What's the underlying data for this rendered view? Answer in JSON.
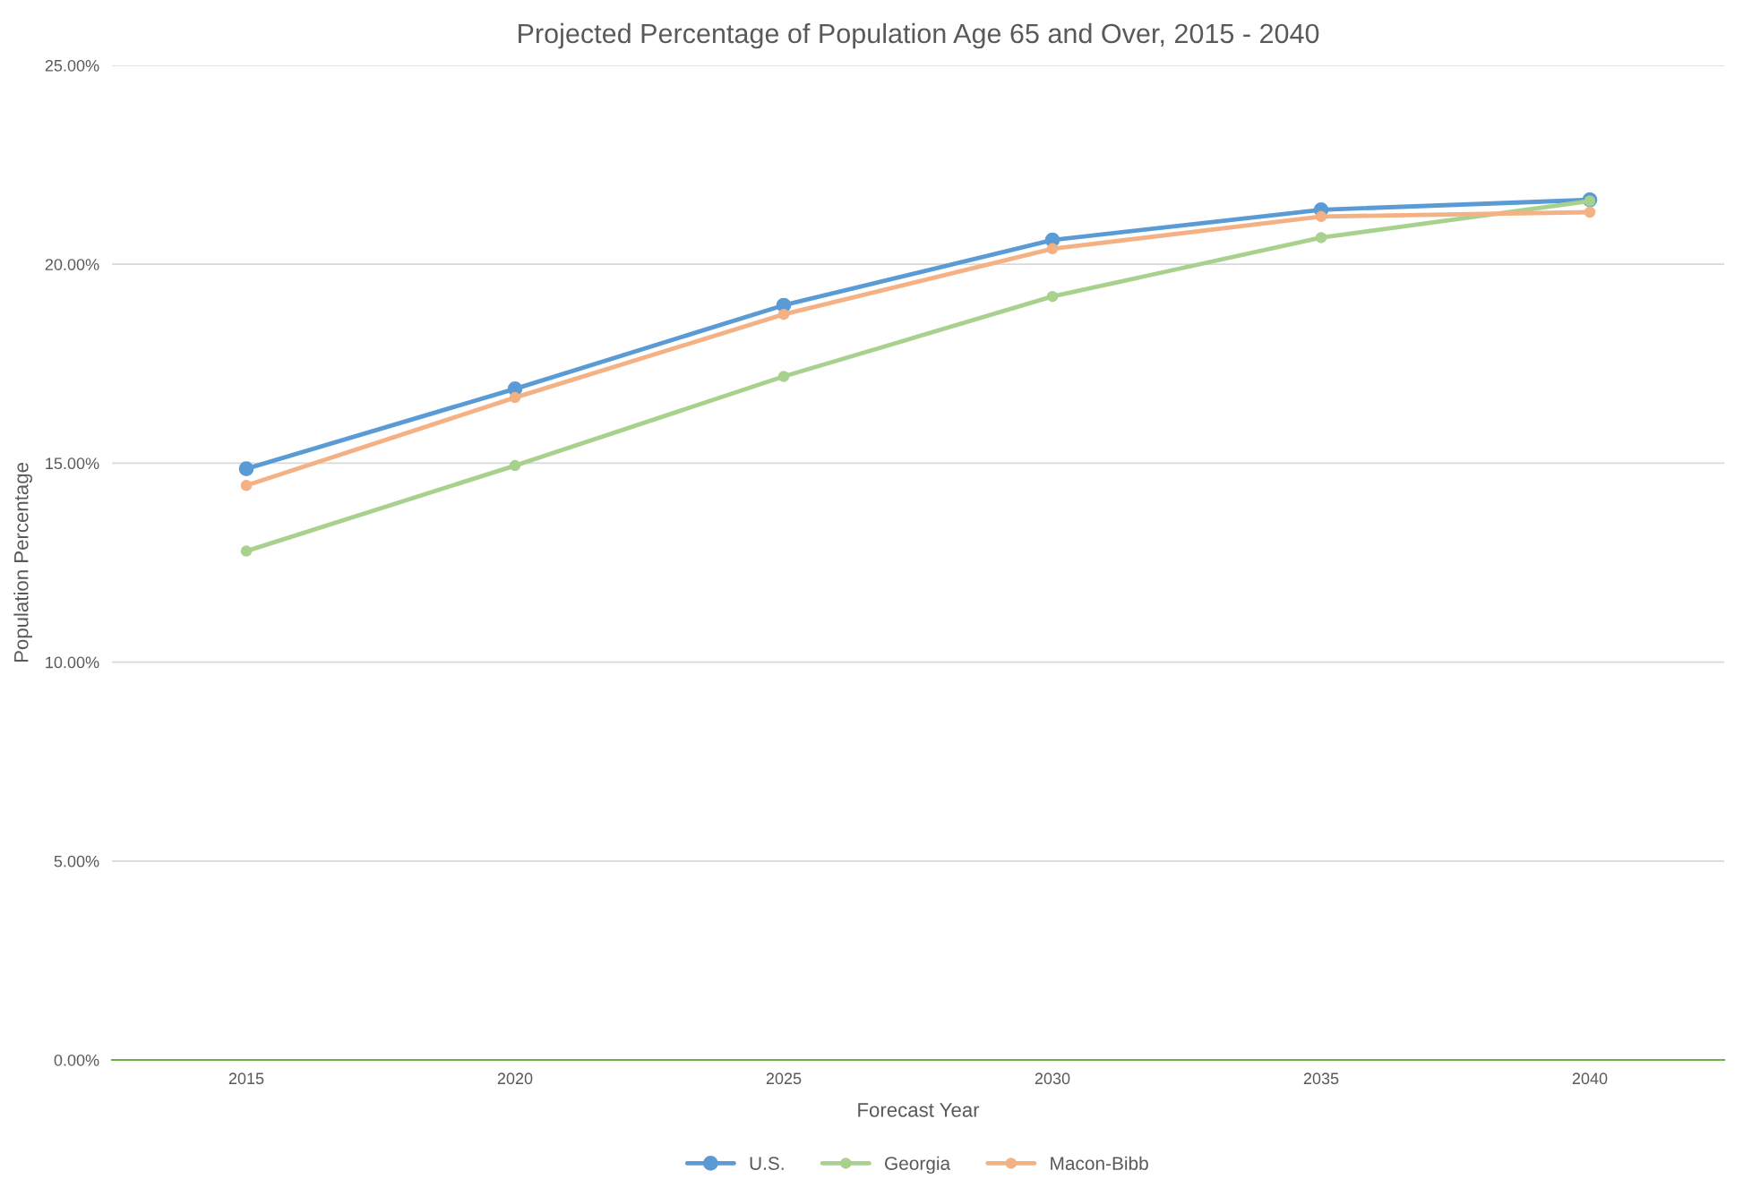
{
  "chart_data": {
    "type": "line",
    "title": "Projected Percentage of Population Age 65 and Over, 2015 - 2040",
    "xlabel": "Forecast Year",
    "ylabel": "Population Percentage",
    "categories": [
      "2015",
      "2020",
      "2025",
      "2030",
      "2035",
      "2040"
    ],
    "series": [
      {
        "name": "U.S.",
        "color": "#5b9bd5",
        "values": [
          14.86,
          16.87,
          18.97,
          20.61,
          21.37,
          21.62
        ]
      },
      {
        "name": "Georgia",
        "color": "#a9d18e",
        "values": [
          12.79,
          14.94,
          17.18,
          19.19,
          20.67,
          21.59
        ]
      },
      {
        "name": "Macon-Bibb",
        "color": "#f4b183",
        "values": [
          14.44,
          16.65,
          18.74,
          20.39,
          21.2,
          21.31
        ]
      }
    ],
    "ylim": [
      0,
      25
    ],
    "yticks": [
      {
        "value": 0,
        "label": "0.00%"
      },
      {
        "value": 5,
        "label": "5.00%"
      },
      {
        "value": 10,
        "label": "10.00%"
      },
      {
        "value": 15,
        "label": "15.00%"
      },
      {
        "value": 20,
        "label": "20.00%"
      },
      {
        "value": 25,
        "label": "25.00%"
      }
    ],
    "grid": "y",
    "legend": "bottom",
    "marker": "circle",
    "line_style": "solid"
  }
}
